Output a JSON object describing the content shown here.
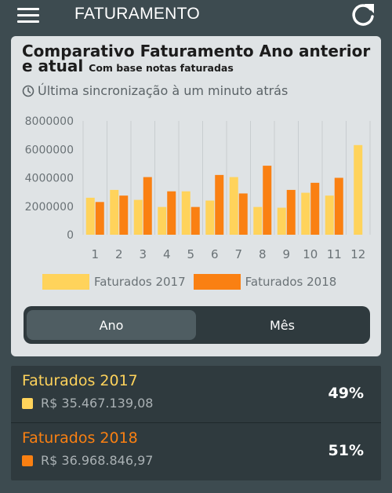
{
  "header": {
    "title": "FATURAMENTO",
    "menu_icon": "hamburger-menu-icon",
    "refresh_icon": "refresh-icon"
  },
  "card": {
    "title": "Comparativo Faturamento Ano anterior e atual",
    "subtitle": "Com base notas faturadas",
    "sync_text": "Última sincronização à um minuto atrás",
    "sync_icon": "clock-icon"
  },
  "colors": {
    "series_2017": "#ffd35b",
    "series_2018": "#fa8012",
    "background": "#3d4b50",
    "card": "#dfe3e5",
    "panel": "#2f3a3e"
  },
  "chart_data": {
    "type": "bar",
    "categories": [
      "1",
      "2",
      "3",
      "4",
      "5",
      "6",
      "7",
      "8",
      "9",
      "10",
      "11",
      "12"
    ],
    "y_ticks": [
      "0",
      "2000000",
      "4000000",
      "6000000",
      "8000000"
    ],
    "ylim": [
      0,
      8000000
    ],
    "series": [
      {
        "name": "Faturados 2017",
        "color": "#ffd35b",
        "values": [
          2600000,
          3150000,
          2450000,
          1950000,
          3050000,
          2400000,
          4050000,
          1950000,
          1900000,
          2950000,
          2750000,
          6300000
        ]
      },
      {
        "name": "Faturados 2018",
        "color": "#fa8012",
        "values": [
          2300000,
          2750000,
          4050000,
          3050000,
          1950000,
          4200000,
          2900000,
          4850000,
          3150000,
          3650000,
          4000000,
          null
        ]
      }
    ],
    "grid": "vertical",
    "legend": "bottom"
  },
  "toggle": {
    "options": [
      "Ano",
      "Mês"
    ],
    "selected": "Ano"
  },
  "stats": [
    {
      "label": "Faturados 2017",
      "value": "R$ 35.467.139,08",
      "percent": "49%",
      "color": "#ffd35b"
    },
    {
      "label": "Faturados 2018",
      "value": "R$ 36.968.846,97",
      "percent": "51%",
      "color": "#fa8012"
    }
  ]
}
